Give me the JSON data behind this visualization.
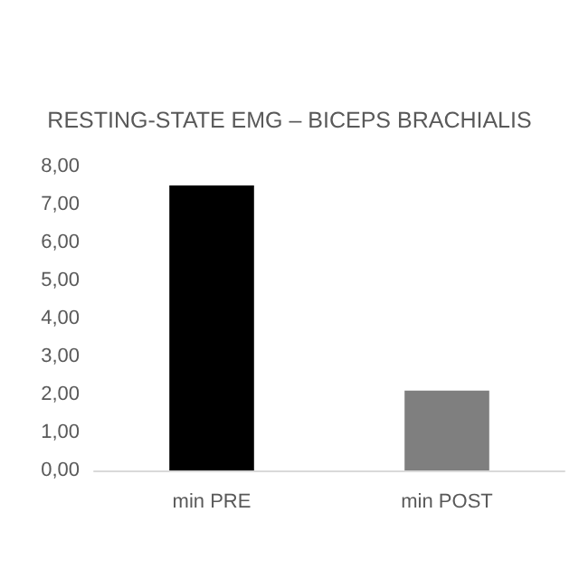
{
  "chart_data": {
    "type": "bar",
    "title": "RESTING-STATE EMG – BICEPS BRACHIALIS",
    "categories": [
      "min PRE",
      "min POST"
    ],
    "values": [
      7.5,
      2.1
    ],
    "colors": [
      "#000000",
      "#7f7f7f"
    ],
    "ylim": [
      0,
      8
    ],
    "yticks": [
      {
        "value": 0,
        "label": "0,00"
      },
      {
        "value": 1,
        "label": "1,00"
      },
      {
        "value": 2,
        "label": "2,00"
      },
      {
        "value": 3,
        "label": "3,00"
      },
      {
        "value": 4,
        "label": "4,00"
      },
      {
        "value": 5,
        "label": "5,00"
      },
      {
        "value": 6,
        "label": "6,00"
      },
      {
        "value": 7,
        "label": "7,00"
      },
      {
        "value": 8,
        "label": "8,00"
      }
    ],
    "grid": false
  }
}
